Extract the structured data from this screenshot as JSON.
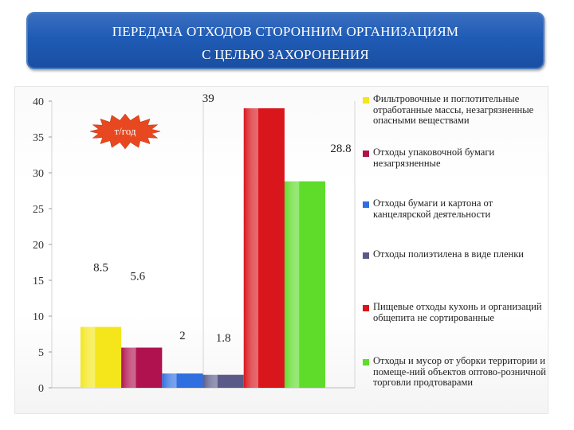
{
  "header": {
    "title_line1": "ПЕРЕДАЧА ОТХОДОВ СТОРОННИМ ОРГАНИЗАЦИЯМ",
    "title_line2": "С ЦЕЛЬЮ ЗАХОРОНЕНИЯ"
  },
  "unit_label": "т/год",
  "chart_data": {
    "type": "bar",
    "ylim": [
      0,
      40
    ],
    "yticks": [
      "0",
      "5",
      "10",
      "15",
      "20",
      "25",
      "30",
      "35",
      "40"
    ],
    "grid": "vertical-only",
    "legend_position": "right",
    "series": [
      {
        "name": "Фильтровочные и поглотительные отработанные массы, незагрязненные опасными веществами",
        "value": 8.5,
        "label": "8.5",
        "color": "#f4e61a"
      },
      {
        "name": "Отходы упаковочной бумаги незагрязненные",
        "value": 5.6,
        "label": "5.6",
        "color": "#b0124f"
      },
      {
        "name": "Отходы бумаги и картона от канцелярской деятельности",
        "value": 2,
        "label": "2",
        "color": "#2f6fe0"
      },
      {
        "name": "Отходы полиэтилена в виде пленки",
        "value": 1.8,
        "label": "1.8",
        "color": "#5a5a8a"
      },
      {
        "name": "Пищевые отходы кухонь и организаций общепита не сортированные",
        "value": 39,
        "label": "39",
        "color": "#d8161c"
      },
      {
        "name": "Отходы и мусор от уборки территории и помеще-ний объектов оптово-розничной торговли продтоварами",
        "value": 28.8,
        "label": "28.8",
        "color": "#5fdc2a"
      }
    ]
  }
}
